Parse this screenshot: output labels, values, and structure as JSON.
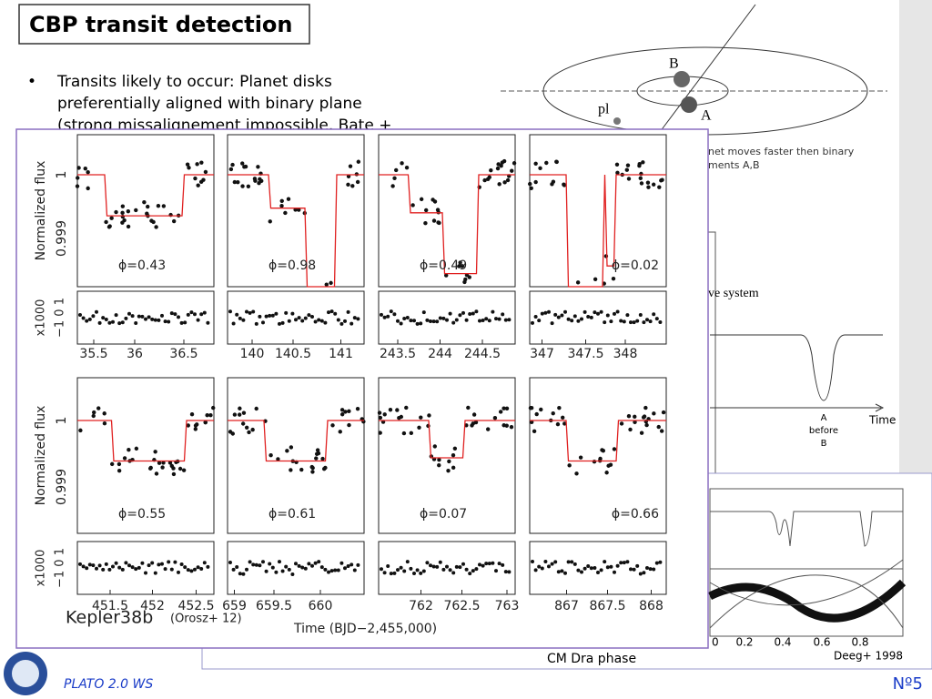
{
  "header": {
    "title": "CBP transit detection"
  },
  "bullet": {
    "lines": [
      "Transits likely to occur: Planet disks",
      "preferentially aligned with binary plane",
      "(strong missalignement impossible, Bate +"
    ]
  },
  "background_figure": {
    "star_b": "B",
    "star_a": "A",
    "planet": "pl",
    "note_lines": [
      "net moves faster then binary",
      "ments A,B"
    ],
    "system_label": "ve system",
    "eclipse_label": [
      "A",
      "before",
      "B"
    ],
    "time_label": "Time",
    "phase_ticks": [
      "0",
      "0.2",
      "0.4",
      "0.6",
      "0.8"
    ],
    "phase_label": "CM Dra phase",
    "citation": "Deeg+ 1998"
  },
  "figure": {
    "y_label": "Normalized flux",
    "yticks": [
      "1",
      "0.999"
    ],
    "residual_label": "x1000",
    "residual_ticks": "−1 0 1",
    "x_label": "Time (BJD−2,455,000)",
    "caption": "Kepler38b",
    "citation": "(Orosz+ 12)",
    "panels": [
      {
        "phase": "ϕ=0.43",
        "xticks": [
          "35.5",
          "36",
          "36.5"
        ]
      },
      {
        "phase": "ϕ=0.98",
        "xticks": [
          "140",
          "140.5",
          "141"
        ]
      },
      {
        "phase": "ϕ=0.49",
        "xticks": [
          "243.5",
          "244",
          "244.5"
        ]
      },
      {
        "phase": "ϕ=0.02",
        "xticks": [
          "347",
          "347.5",
          "348"
        ]
      },
      {
        "phase": "ϕ=0.55",
        "xticks": [
          "451.5",
          "452",
          "452.5"
        ]
      },
      {
        "phase": "ϕ=0.61",
        "xticks": [
          "659",
          "659.5",
          "660"
        ]
      },
      {
        "phase": "ϕ=0.07",
        "xticks": [
          "762",
          "762.5",
          "763"
        ]
      },
      {
        "phase": "ϕ=0.66",
        "xticks": [
          "867",
          "867.5",
          "868"
        ]
      }
    ]
  },
  "footer": {
    "event": "PLATO 2.0 WS",
    "slide_number": "Nº5"
  }
}
